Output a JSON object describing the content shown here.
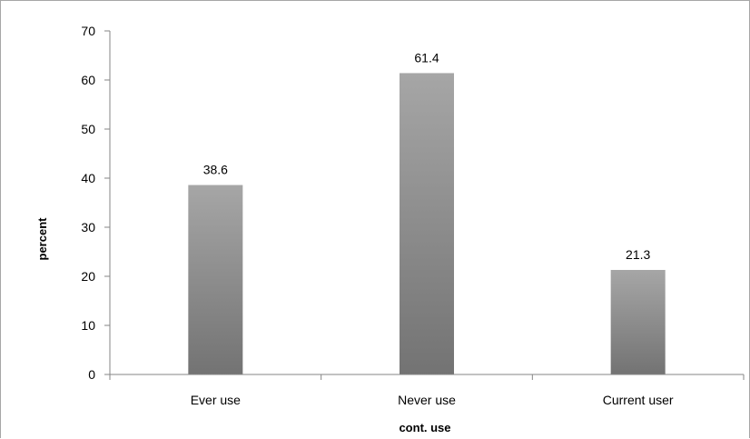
{
  "chart_data": {
    "type": "bar",
    "categories": [
      "Ever use",
      "Never use",
      "Current user"
    ],
    "values": [
      38.6,
      61.4,
      21.3
    ],
    "data_labels": [
      "38.6",
      "61.4",
      "21.3"
    ],
    "xlabel": "cont. use",
    "ylabel": "percent",
    "ylim": [
      0,
      70
    ],
    "yticks": [
      0,
      10,
      20,
      30,
      40,
      50,
      60,
      70
    ],
    "grid": false,
    "legend": "none",
    "bar_color_top": "#a6a6a6",
    "bar_color_bottom": "#737373",
    "axis_color": "#868686"
  }
}
